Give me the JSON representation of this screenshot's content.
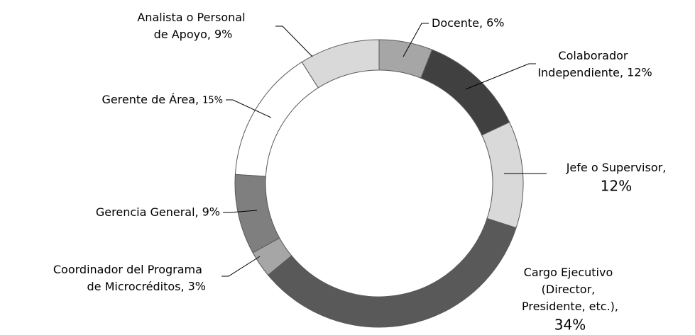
{
  "chart_data": {
    "type": "donut",
    "categories": [
      "Docente,",
      "Colaborador Independiente,",
      "Jefe o Supervisor,",
      "Cargo Ejecutivo (Director, Presidente, etc.),",
      "Coordinador del Programa de Microcréditos,",
      "Gerencia General,",
      "Gerente de Área,",
      "Analista o Personal de Apoyo,"
    ],
    "values": [
      6,
      12,
      12,
      34,
      3,
      9,
      15,
      9
    ],
    "value_labels": [
      "6%",
      "12%",
      "12%",
      "34%",
      "3%",
      "9%",
      "15%",
      "9%"
    ],
    "colors": [
      "#a6a6a6",
      "#404040",
      "#d9d9d9",
      "#595959",
      "#a6a6a6",
      "#7f7f7f",
      "#ffffff",
      "#d9d9d9"
    ]
  }
}
